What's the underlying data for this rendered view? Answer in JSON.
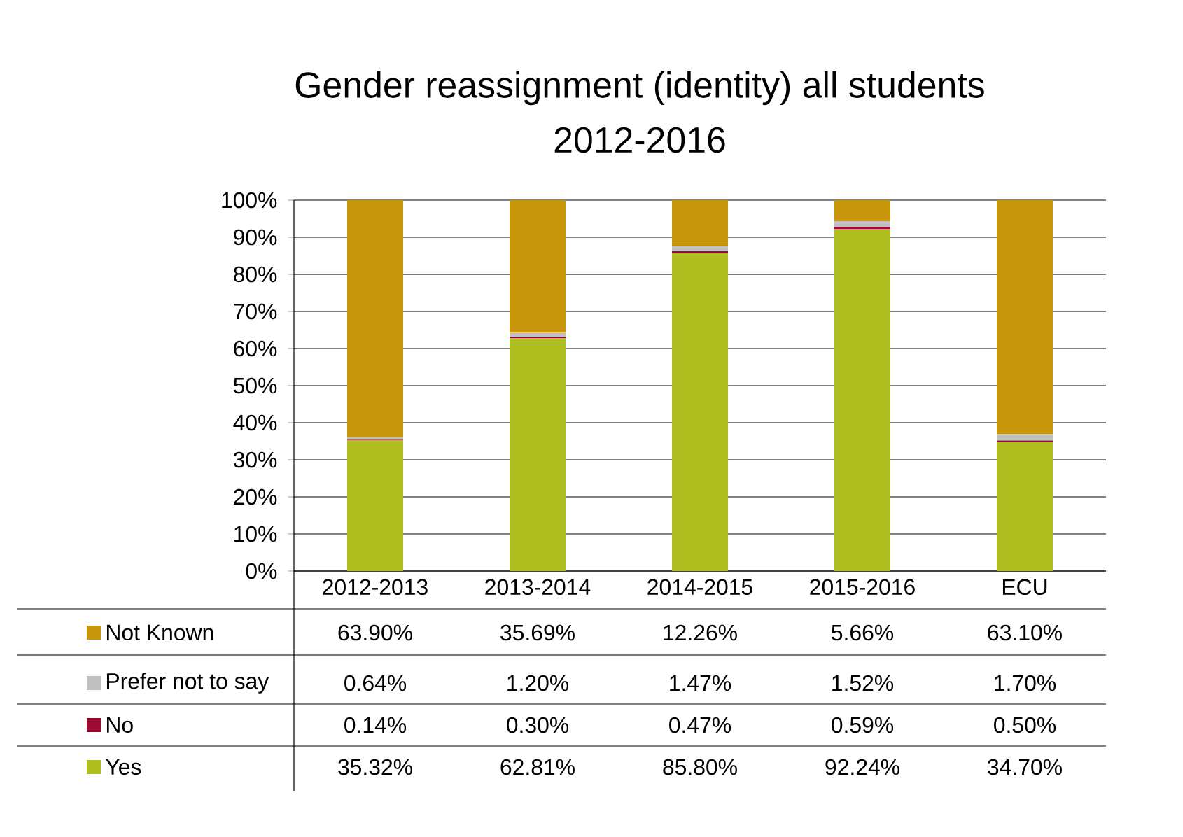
{
  "chart_data": {
    "type": "bar",
    "stacked": true,
    "title": "Gender reassignment (identity) all students",
    "subtitle": "2012-2016",
    "categories": [
      "2012-2013",
      "2013-2014",
      "2014-2015",
      "2015-2016",
      "ECU"
    ],
    "series": [
      {
        "name": "Yes",
        "color": "#b0bf20",
        "values": [
          35.32,
          62.81,
          85.8,
          92.24,
          34.7
        ],
        "value_labels": [
          "35.32%",
          "62.81%",
          "85.80%",
          "92.24%",
          "34.70%"
        ]
      },
      {
        "name": "No",
        "color": "#9b0a30",
        "values": [
          0.14,
          0.3,
          0.47,
          0.59,
          0.5
        ],
        "value_labels": [
          "0.14%",
          "0.30%",
          "0.47%",
          "0.59%",
          "0.50%"
        ]
      },
      {
        "name": "Prefer not to say",
        "color": "#c0c0c0",
        "values": [
          0.64,
          1.2,
          1.47,
          1.52,
          1.7
        ],
        "value_labels": [
          "0.64%",
          "1.20%",
          "1.47%",
          "1.52%",
          "1.70%"
        ]
      },
      {
        "name": "Not Known",
        "color": "#c8960a",
        "values": [
          63.9,
          35.69,
          12.26,
          5.66,
          63.1
        ],
        "value_labels": [
          "63.90%",
          "35.69%",
          "12.26%",
          "5.66%",
          "63.10%"
        ]
      }
    ],
    "ylim": [
      0,
      100
    ],
    "yticks": [
      {
        "value": 0,
        "label": "0%"
      },
      {
        "value": 10,
        "label": "10%"
      },
      {
        "value": 20,
        "label": "20%"
      },
      {
        "value": 30,
        "label": "30%"
      },
      {
        "value": 40,
        "label": "40%"
      },
      {
        "value": 50,
        "label": "50%"
      },
      {
        "value": 60,
        "label": "60%"
      },
      {
        "value": 70,
        "label": "70%"
      },
      {
        "value": 80,
        "label": "80%"
      },
      {
        "value": 90,
        "label": "90%"
      },
      {
        "value": 100,
        "label": "100%"
      }
    ],
    "grid": "y",
    "legend": "bottom"
  }
}
